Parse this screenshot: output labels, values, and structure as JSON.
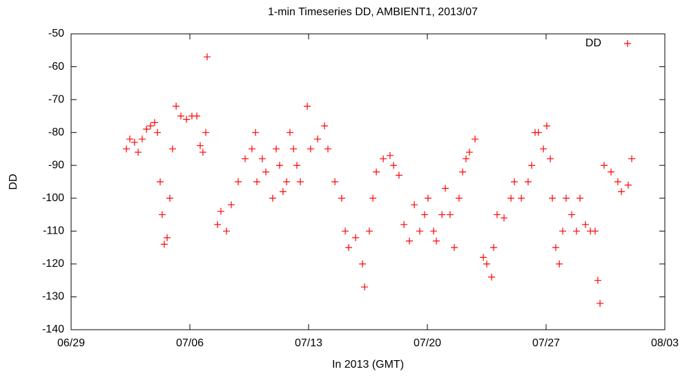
{
  "chart_data": {
    "type": "scatter",
    "title": "1-min Timeseries DD, AMBIENT1, 2013/07",
    "x_label": "In 2013 (GMT)",
    "y_label": "DD",
    "legend_position": "top-right",
    "xlim": [
      -1,
      34
    ],
    "xticks": [
      {
        "value": -1,
        "label": "06/29"
      },
      {
        "value": 6,
        "label": "07/06"
      },
      {
        "value": 13,
        "label": "07/13"
      },
      {
        "value": 20,
        "label": "07/20"
      },
      {
        "value": 27,
        "label": "07/27"
      },
      {
        "value": 34,
        "label": "08/03"
      }
    ],
    "ylim": [
      -140,
      -50
    ],
    "yticks": [
      -140,
      -130,
      -120,
      -110,
      -100,
      -90,
      -80,
      -70,
      -60,
      -50
    ],
    "x": [
      2.26,
      2.46,
      2.74,
      2.95,
      3.19,
      3.44,
      3.68,
      3.92,
      4.09,
      4.25,
      4.37,
      4.49,
      4.66,
      4.82,
      4.98,
      5.19,
      5.47,
      5.8,
      6.12,
      6.41,
      6.61,
      6.77,
      6.94,
      7.02,
      7.63,
      7.83,
      8.16,
      8.44,
      8.85,
      9.26,
      9.66,
      9.87,
      9.95,
      10.27,
      10.48,
      10.88,
      11.09,
      11.29,
      11.49,
      11.7,
      11.9,
      12.11,
      12.31,
      12.51,
      12.92,
      13.12,
      13.53,
      13.94,
      14.14,
      14.55,
      14.95,
      15.16,
      15.36,
      15.77,
      16.18,
      16.3,
      16.58,
      16.79,
      16.99,
      17.4,
      17.8,
      18.01,
      18.33,
      18.62,
      18.94,
      19.23,
      19.55,
      19.84,
      20.04,
      20.37,
      20.53,
      20.86,
      21.06,
      21.34,
      21.59,
      21.87,
      22.08,
      22.28,
      22.48,
      22.81,
      23.3,
      23.5,
      23.79,
      23.91,
      24.11,
      24.52,
      24.93,
      25.13,
      25.54,
      25.94,
      26.15,
      26.35,
      26.55,
      26.84,
      27.04,
      27.25,
      27.37,
      27.57,
      27.78,
      27.98,
      28.18,
      28.51,
      28.79,
      29.0,
      29.32,
      29.61,
      29.89,
      30.05,
      30.18,
      30.42,
      30.83,
      31.23,
      31.44,
      31.84,
      32.05
    ],
    "series": [
      {
        "name": "DD",
        "color": "#ff0000",
        "values": [
          -85,
          -82,
          -83,
          -86,
          -82,
          -79,
          -78,
          -77,
          -80,
          -95,
          -105,
          -114,
          -112,
          -100,
          -85,
          -72,
          -75,
          -76,
          -75,
          -75,
          -84,
          -86,
          -80,
          -57,
          -108,
          -104,
          -110,
          -102,
          -95,
          -88,
          -85,
          -80,
          -95,
          -88,
          -92,
          -100,
          -85,
          -90,
          -98,
          -95,
          -80,
          -85,
          -90,
          -95,
          -72,
          -85,
          -82,
          -78,
          -85,
          -95,
          -100,
          -110,
          -115,
          -112,
          -120,
          -127,
          -110,
          -100,
          -92,
          -88,
          -87,
          -90,
          -93,
          -108,
          -113,
          -102,
          -110,
          -105,
          -100,
          -110,
          -113,
          -105,
          -97,
          -105,
          -115,
          -100,
          -92,
          -88,
          -86,
          -82,
          -118,
          -120,
          -124,
          -115,
          -105,
          -106,
          -100,
          -95,
          -100,
          -95,
          -90,
          -80,
          -80,
          -85,
          -78,
          -88,
          -100,
          -115,
          -120,
          -110,
          -100,
          -105,
          -110,
          -100,
          -108,
          -110,
          -110,
          -125,
          -132,
          -90,
          -92,
          -95,
          -98,
          -96,
          -88
        ]
      }
    ]
  }
}
